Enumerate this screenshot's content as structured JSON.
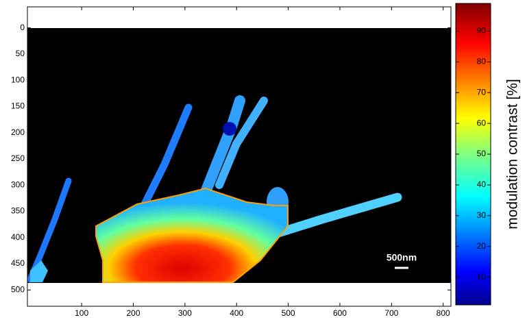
{
  "chart_data": {
    "type": "heatmap",
    "colormap": "jet",
    "xlim": [
      -5,
      815
    ],
    "xticks": [
      100,
      200,
      300,
      400,
      500,
      600,
      700,
      800
    ],
    "ylim": [
      531,
      -40
    ],
    "yticks": [
      0,
      50,
      100,
      150,
      200,
      250,
      300,
      350,
      400,
      450,
      500
    ],
    "colorbar": {
      "label": "modulation contrast [%]",
      "lim": [
        1,
        99
      ],
      "ticks": [
        10,
        20,
        30,
        40,
        50,
        60,
        70,
        80,
        90
      ]
    },
    "annotation": "500nm"
  }
}
